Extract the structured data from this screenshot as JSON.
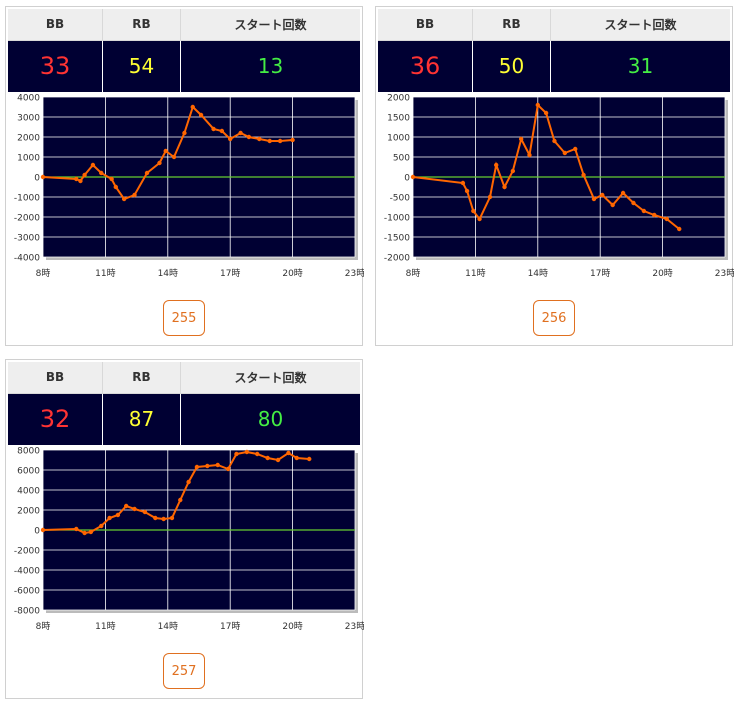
{
  "cards": [
    {
      "headers": {
        "bb": "BB",
        "rb": "RB",
        "start": "スタート回数"
      },
      "bb": "33",
      "rb": "54",
      "start": "13",
      "button_label": "255",
      "chart_data": {
        "type": "line",
        "ylim": [
          -4000,
          4000
        ],
        "yticks": [
          "4000",
          "3000",
          "2000",
          "1000",
          "0",
          "-1000",
          "-2000",
          "-3000",
          "-4000"
        ],
        "xticks": [
          "8時",
          "11時",
          "14時",
          "17時",
          "20時",
          "23時"
        ],
        "xlim": [
          8,
          23
        ],
        "line_color": "#ff6600",
        "zero_line_color": "#66cc33",
        "series": [
          {
            "x": [
              8,
              9.6,
              9.8,
              10,
              10.4,
              10.8,
              11.3,
              11.5,
              11.9,
              12.4,
              13,
              13.6,
              13.9,
              14.3,
              14.8,
              15.2,
              15.6,
              16.2,
              16.6,
              17,
              17.5,
              17.9,
              18.4,
              18.9,
              19.4,
              20
            ],
            "y": [
              0,
              -100,
              -200,
              100,
              600,
              200,
              -100,
              -500,
              -1100,
              -900,
              200,
              700,
              1300,
              1000,
              2200,
              3500,
              3100,
              2400,
              2300,
              1900,
              2200,
              2000,
              1900,
              1800,
              1800,
              1850
            ]
          }
        ]
      }
    },
    {
      "headers": {
        "bb": "BB",
        "rb": "RB",
        "start": "スタート回数"
      },
      "bb": "36",
      "rb": "50",
      "start": "31",
      "button_label": "256",
      "chart_data": {
        "type": "line",
        "ylim": [
          -2000,
          2000
        ],
        "yticks": [
          "2000",
          "1500",
          "1000",
          "500",
          "0",
          "-500",
          "-1000",
          "-1500",
          "-2000"
        ],
        "xticks": [
          "8時",
          "11時",
          "14時",
          "17時",
          "20時",
          "23時"
        ],
        "xlim": [
          8,
          23
        ],
        "line_color": "#ff6600",
        "zero_line_color": "#66cc33",
        "series": [
          {
            "x": [
              8,
              10.4,
              10.6,
              10.9,
              11.2,
              11.7,
              12,
              12.4,
              12.8,
              13.2,
              13.6,
              14,
              14.4,
              14.8,
              15.3,
              15.8,
              16.2,
              16.7,
              17.1,
              17.6,
              18.1,
              18.6,
              19.1,
              19.6,
              20.2,
              20.8
            ],
            "y": [
              0,
              -150,
              -350,
              -850,
              -1050,
              -500,
              300,
              -250,
              150,
              950,
              550,
              1800,
              1600,
              900,
              600,
              700,
              50,
              -550,
              -450,
              -700,
              -400,
              -650,
              -850,
              -950,
              -1050,
              -1300
            ]
          }
        ]
      }
    },
    {
      "headers": {
        "bb": "BB",
        "rb": "RB",
        "start": "スタート回数"
      },
      "bb": "32",
      "rb": "87",
      "start": "80",
      "button_label": "257",
      "chart_data": {
        "type": "line",
        "ylim": [
          -8000,
          8000
        ],
        "yticks": [
          "8000",
          "6000",
          "4000",
          "2000",
          "0",
          "-2000",
          "-4000",
          "-6000",
          "-8000"
        ],
        "xticks": [
          "8時",
          "11時",
          "14時",
          "17時",
          "20時",
          "23時"
        ],
        "xlim": [
          8,
          23
        ],
        "line_color": "#ff6600",
        "zero_line_color": "#66cc33",
        "series": [
          {
            "x": [
              8,
              9.6,
              10,
              10.3,
              10.8,
              11.2,
              11.6,
              12,
              12.4,
              12.9,
              13.4,
              13.8,
              14.2,
              14.6,
              15,
              15.4,
              15.9,
              16.4,
              16.9,
              17.3,
              17.8,
              18.3,
              18.8,
              19.3,
              19.8,
              20.2,
              20.8
            ],
            "y": [
              0,
              100,
              -300,
              -200,
              400,
              1200,
              1500,
              2400,
              2100,
              1800,
              1200,
              1100,
              1200,
              3000,
              4800,
              6300,
              6400,
              6500,
              6100,
              7600,
              7800,
              7600,
              7200,
              7000,
              7700,
              7200,
              7100
            ]
          }
        ]
      }
    }
  ]
}
